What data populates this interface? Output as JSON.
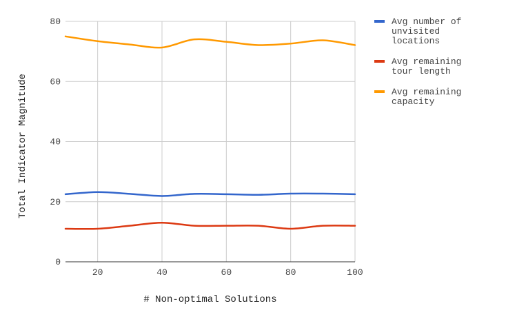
{
  "chart_data": {
    "type": "line",
    "title": "",
    "xlabel": "# Non-optimal Solutions",
    "ylabel": "Total Indicator Magnitude",
    "xlim": [
      10,
      100
    ],
    "ylim": [
      0,
      80
    ],
    "x_ticks": [
      "20",
      "40",
      "60",
      "80",
      "100"
    ],
    "y_ticks": [
      "0",
      "20",
      "40",
      "60",
      "80"
    ],
    "grid": true,
    "legend_position": "right",
    "x": [
      10,
      20,
      30,
      40,
      50,
      60,
      70,
      80,
      90,
      100
    ],
    "series": [
      {
        "name": "Avg number of unvisited locations",
        "legend_lines": [
          "Avg number of",
          "unvisited",
          "locations"
        ],
        "color": "#3366cc",
        "values": [
          22.5,
          23.2,
          22.6,
          21.9,
          22.6,
          22.5,
          22.3,
          22.7,
          22.7,
          22.5
        ]
      },
      {
        "name": "Avg remaining tour length",
        "legend_lines": [
          "Avg remaining",
          "tour length"
        ],
        "color": "#dc3912",
        "values": [
          11.0,
          11.0,
          12.0,
          13.0,
          12.0,
          12.0,
          12.0,
          11.0,
          12.0,
          12.0
        ]
      },
      {
        "name": "Avg remaining capacity",
        "legend_lines": [
          "Avg remaining",
          "capacity"
        ],
        "color": "#ff9900",
        "values": [
          75.0,
          73.4,
          72.3,
          71.3,
          74.0,
          73.2,
          72.1,
          72.6,
          73.7,
          72.1
        ]
      }
    ]
  }
}
